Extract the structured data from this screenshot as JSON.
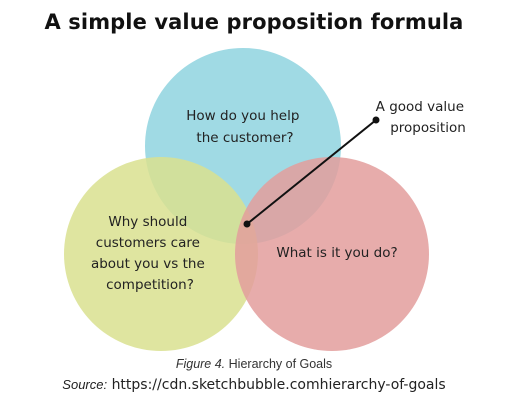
{
  "title": "A simple value proposition formula",
  "circles": [
    {
      "id": "help",
      "lines": [
        "How do you help",
        "the customer?"
      ],
      "color": "#8fd3df"
    },
    {
      "id": "why",
      "lines": [
        "Why should",
        "customers care",
        "about you vs the",
        "competition?"
      ],
      "color": "#d9e08f"
    },
    {
      "id": "what",
      "lines": [
        "What is it you do?"
      ],
      "color": "#e39e9c"
    }
  ],
  "callout": {
    "lines": [
      "A good value",
      "proposition"
    ]
  },
  "caption": {
    "figure": "Figure 4.",
    "text": "Hierarchy of Goals"
  },
  "source": {
    "label": "Source:",
    "text": "https://cdn.sketchbubble.comhierarchy-of-goals"
  }
}
